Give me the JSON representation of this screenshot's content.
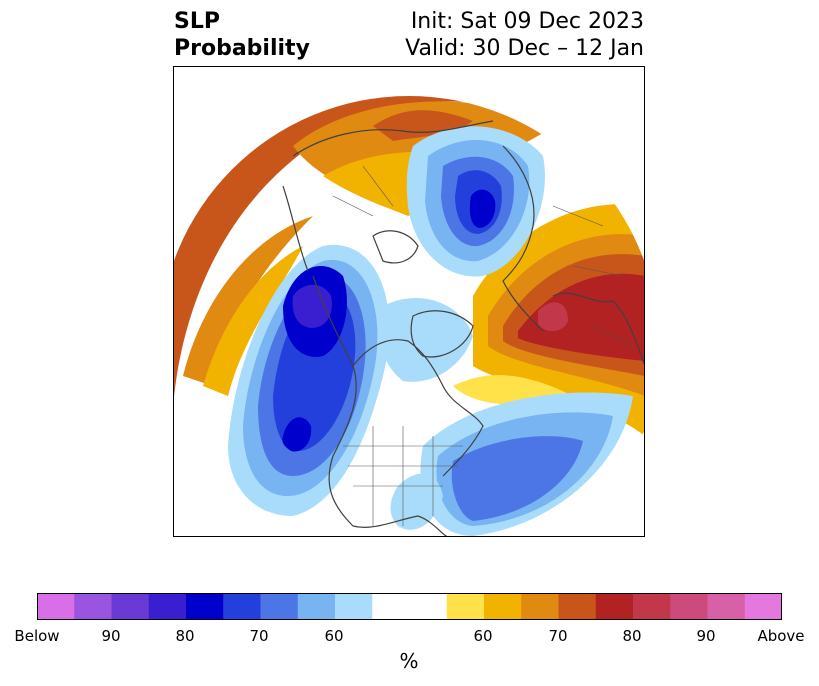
{
  "title": {
    "left_line1": "SLP",
    "left_line2": "Probability",
    "right_line1": "Init: Sat 09 Dec 2023",
    "right_line2": "Valid: 30 Dec – 12 Jan"
  },
  "colorbar": {
    "unit": "%",
    "colors": [
      "#d86fe8",
      "#9a55e0",
      "#6a3ad6",
      "#3a1fd0",
      "#0000cc",
      "#2440dc",
      "#4c76e6",
      "#78b4f2",
      "#a9dcfa",
      "#ffffff",
      "#ffe24a",
      "#f2b200",
      "#e08a12",
      "#c8561a",
      "#b22222",
      "#c2384a",
      "#cc4b7c",
      "#d860a8",
      "#e478de"
    ],
    "tick_labels": [
      "Below",
      "90",
      "80",
      "70",
      "60",
      "60",
      "70",
      "80",
      "90",
      "Above"
    ]
  },
  "map": {
    "projection": "north-polar-stereographic",
    "features": [
      "coastlines",
      "country-borders",
      "state-borders"
    ],
    "high_prob_above_regions": [
      "north-atlantic-europe",
      "northeast-pacific-ring"
    ],
    "high_prob_below_regions": [
      "alaska-gulf",
      "arctic-siberia",
      "eastern-us-atlantic"
    ]
  }
}
